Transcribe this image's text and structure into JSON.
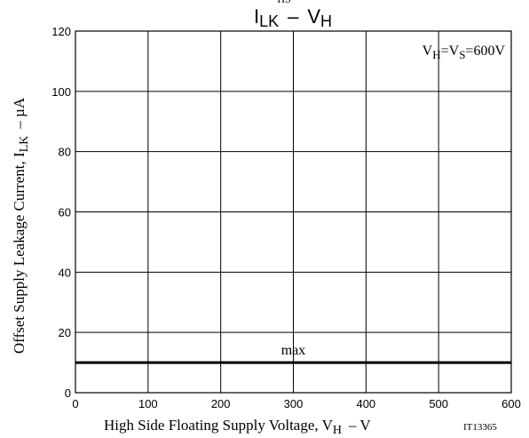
{
  "chart_data": {
    "type": "line",
    "title": {
      "main_1": "I",
      "sub_1": "LK",
      "dash": "–",
      "main_2": "V",
      "sub_2": "H",
      "clipped_top": "HS"
    },
    "xlabel": {
      "text": "High Side Floating Supply Voltage, V",
      "sub": "H",
      "unit": "– V"
    },
    "ylabel": {
      "text": "Offset Supply Leakage Current, I",
      "sub": "LK",
      "unit": "– µA"
    },
    "xlim": [
      0,
      600
    ],
    "ylim": [
      0,
      120
    ],
    "x_ticks": [
      0,
      100,
      200,
      300,
      400,
      500,
      600
    ],
    "y_ticks": [
      0,
      20,
      40,
      60,
      80,
      100,
      120
    ],
    "grid": true,
    "condition": {
      "p1": "V",
      "s1": "H",
      "p2": "=V",
      "s2": "S",
      "p3": "=600V"
    },
    "figure_id": "IT13365",
    "series": [
      {
        "name": "max",
        "x": [
          0,
          600
        ],
        "values": [
          10,
          10
        ]
      }
    ]
  }
}
